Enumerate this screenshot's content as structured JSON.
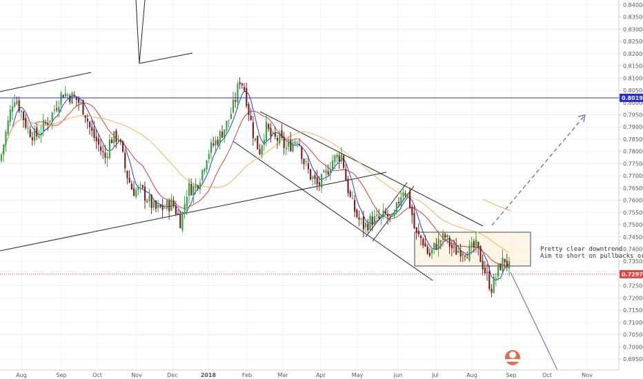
{
  "chart_data": {
    "type": "candlestick",
    "y_axis": {
      "position": "right",
      "ticks": [
        "0.84000",
        "0.83500",
        "0.83000",
        "0.82500",
        "0.82000",
        "0.81500",
        "0.81000",
        "0.80500",
        "0.80000",
        "0.79500",
        "0.79000",
        "0.78500",
        "0.78000",
        "0.77500",
        "0.77000",
        "0.76500",
        "0.76000",
        "0.75500",
        "0.75000",
        "0.74500",
        "0.74000",
        "0.73500",
        "0.73000",
        "0.72500",
        "0.72000",
        "0.71500",
        "0.71000",
        "0.70500",
        "0.70000",
        "0.69500"
      ],
      "range": [
        0.693,
        0.841
      ]
    },
    "x_axis": {
      "ticks": [
        "Aug",
        "Sep",
        "Oct",
        "Nov",
        "Dec",
        "2018",
        "Feb",
        "Mar",
        "Apr",
        "May",
        "Jun",
        "Jul",
        "Aug",
        "Sep",
        "Oct",
        "Nov"
      ]
    },
    "price_labels": [
      {
        "value": 0.80193,
        "label": "0.80193",
        "color": "#2b2bd6"
      },
      {
        "value": 0.72972,
        "label": "0.72972",
        "color": "#e0443e"
      }
    ],
    "annotation": {
      "lines": [
        "Pretty clear downtrend",
        "Aim to short on pullbacks or br"
      ]
    },
    "series": [
      {
        "name": "price",
        "style": "candles",
        "up_color": "#37a043",
        "down_color": "#7a2020"
      },
      {
        "style": "moving-average",
        "color": "#2a39c8"
      },
      {
        "style": "moving-average",
        "color": "#d93a3a"
      },
      {
        "style": "moving-average",
        "color": "#f2b35a"
      }
    ]
  }
}
